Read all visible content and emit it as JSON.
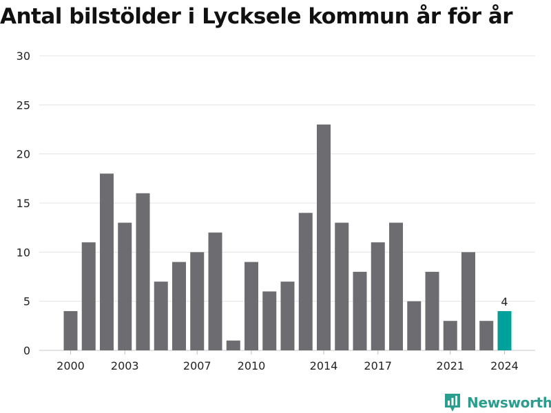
{
  "title": "Antal bilstölder i Lycksele kommun år för år",
  "brand": {
    "name": "Newsworthy",
    "icon": "newsworthy-logo-icon",
    "color": "#2a9d8f"
  },
  "chart_data": {
    "type": "bar",
    "title": "Antal bilstölder i Lycksele kommun år för år",
    "xlabel": "",
    "ylabel": "",
    "categories": [
      "2000",
      "2001",
      "2002",
      "2003",
      "2004",
      "2005",
      "2006",
      "2007",
      "2008",
      "2009",
      "2010",
      "2011",
      "2012",
      "2013",
      "2014",
      "2015",
      "2016",
      "2017",
      "2018",
      "2019",
      "2020",
      "2021",
      "2022",
      "2023",
      "2024"
    ],
    "values": [
      4,
      11,
      18,
      13,
      16,
      7,
      9,
      10,
      12,
      1,
      9,
      6,
      7,
      14,
      23,
      13,
      8,
      11,
      13,
      5,
      8,
      3,
      10,
      3,
      4
    ],
    "x_tick_labels": [
      "2000",
      "2003",
      "2007",
      "2010",
      "2014",
      "2017",
      "2021",
      "2024"
    ],
    "y_ticks": [
      0,
      5,
      10,
      15,
      20,
      25,
      30
    ],
    "ylim": [
      0,
      30
    ],
    "grid": true,
    "bar_color": "#6d6c71",
    "highlight_color": "#00a19a",
    "highlight_category": "2024",
    "highlight_label": "4"
  }
}
